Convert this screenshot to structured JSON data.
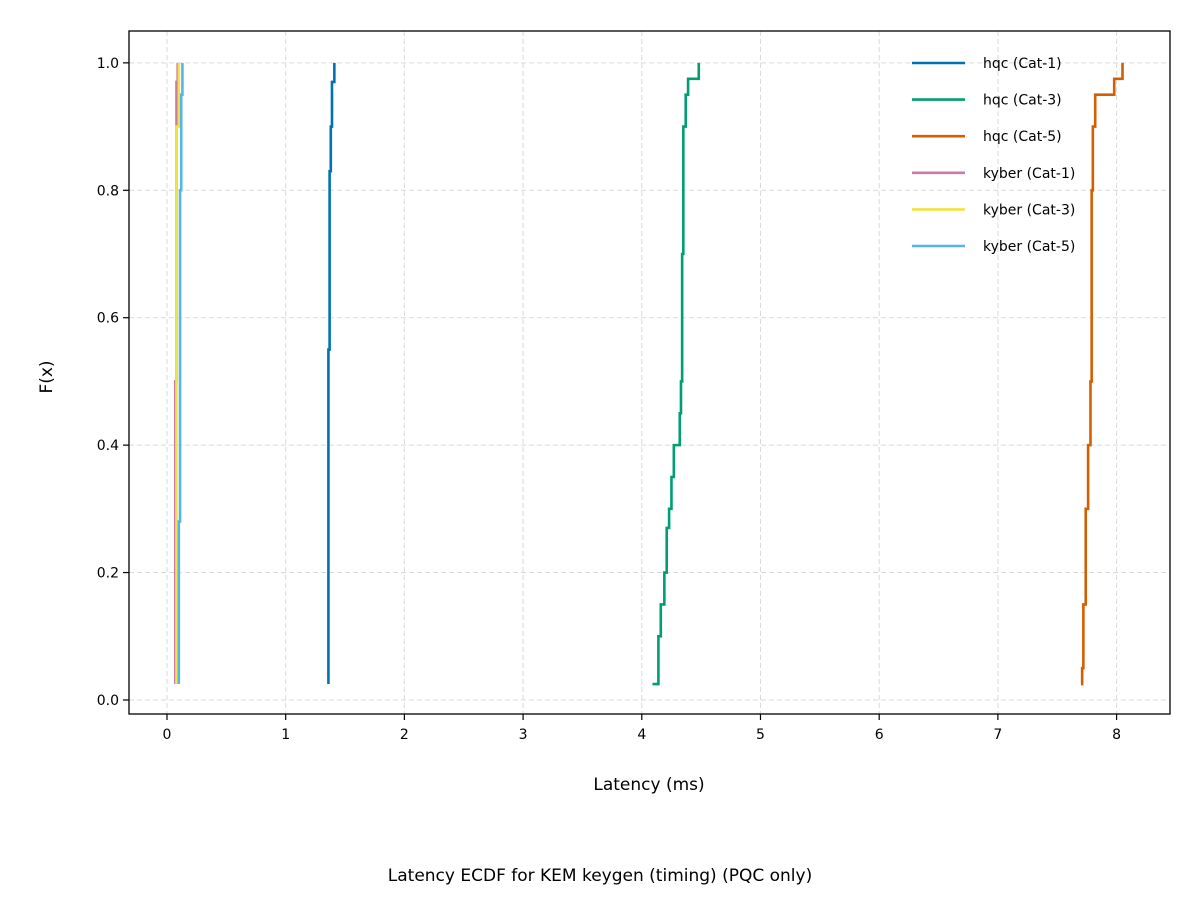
{
  "caption": "Latency ECDF for KEM keygen (timing) (PQC only)",
  "chart_data": {
    "type": "line",
    "step": true,
    "xlabel": "Latency (ms)",
    "ylabel": "F(x)",
    "xlim": [
      -0.32,
      8.45
    ],
    "ylim": [
      -0.022,
      1.05
    ],
    "xticks": [
      0,
      1,
      2,
      3,
      4,
      5,
      6,
      7,
      8
    ],
    "yticks": [
      0.0,
      0.2,
      0.4,
      0.6,
      0.8,
      1.0
    ],
    "ytick_labels": [
      "0.0",
      "0.2",
      "0.4",
      "0.6",
      "0.8",
      "1.0"
    ],
    "grid": true,
    "legend_position": "top-right",
    "series": [
      {
        "name": "hqc (Cat-1)",
        "color": "#0072B2",
        "points": [
          [
            1.36,
            0.025
          ],
          [
            1.36,
            0.55
          ],
          [
            1.37,
            0.55
          ],
          [
            1.37,
            0.83
          ],
          [
            1.38,
            0.83
          ],
          [
            1.38,
            0.9
          ],
          [
            1.39,
            0.9
          ],
          [
            1.39,
            0.97
          ],
          [
            1.41,
            0.97
          ],
          [
            1.41,
            1.0
          ]
        ]
      },
      {
        "name": "hqc (Cat-3)",
        "color": "#009E73",
        "points": [
          [
            4.09,
            0.025
          ],
          [
            4.14,
            0.025
          ],
          [
            4.14,
            0.1
          ],
          [
            4.16,
            0.1
          ],
          [
            4.16,
            0.15
          ],
          [
            4.19,
            0.15
          ],
          [
            4.19,
            0.2
          ],
          [
            4.21,
            0.2
          ],
          [
            4.21,
            0.27
          ],
          [
            4.23,
            0.27
          ],
          [
            4.23,
            0.3
          ],
          [
            4.25,
            0.3
          ],
          [
            4.25,
            0.35
          ],
          [
            4.27,
            0.35
          ],
          [
            4.27,
            0.4
          ],
          [
            4.32,
            0.4
          ],
          [
            4.32,
            0.45
          ],
          [
            4.33,
            0.45
          ],
          [
            4.33,
            0.5
          ],
          [
            4.34,
            0.5
          ],
          [
            4.34,
            0.7
          ],
          [
            4.35,
            0.7
          ],
          [
            4.35,
            0.9
          ],
          [
            4.37,
            0.9
          ],
          [
            4.37,
            0.95
          ],
          [
            4.39,
            0.95
          ],
          [
            4.39,
            0.975
          ],
          [
            4.48,
            0.975
          ],
          [
            4.48,
            1.0
          ]
        ]
      },
      {
        "name": "hqc (Cat-5)",
        "color": "#D55E00",
        "points": [
          [
            7.7,
            0.025
          ],
          [
            7.71,
            0.025
          ],
          [
            7.71,
            0.05
          ],
          [
            7.72,
            0.05
          ],
          [
            7.72,
            0.15
          ],
          [
            7.74,
            0.15
          ],
          [
            7.74,
            0.3
          ],
          [
            7.76,
            0.3
          ],
          [
            7.76,
            0.4
          ],
          [
            7.78,
            0.4
          ],
          [
            7.78,
            0.5
          ],
          [
            7.79,
            0.5
          ],
          [
            7.79,
            0.8
          ],
          [
            7.8,
            0.8
          ],
          [
            7.8,
            0.9
          ],
          [
            7.82,
            0.9
          ],
          [
            7.82,
            0.95
          ],
          [
            7.98,
            0.95
          ],
          [
            7.98,
            0.975
          ],
          [
            8.05,
            0.975
          ],
          [
            8.05,
            1.0
          ]
        ]
      },
      {
        "name": "kyber (Cat-1)",
        "color": "#CC79A7",
        "points": [
          [
            0.07,
            0.025
          ],
          [
            0.07,
            0.5
          ],
          [
            0.08,
            0.5
          ],
          [
            0.08,
            0.97
          ],
          [
            0.09,
            0.97
          ],
          [
            0.09,
            1.0
          ]
        ]
      },
      {
        "name": "kyber (Cat-3)",
        "color": "#F0E442",
        "points": [
          [
            0.08,
            0.025
          ],
          [
            0.08,
            0.9
          ],
          [
            0.1,
            0.9
          ],
          [
            0.1,
            1.0
          ]
        ]
      },
      {
        "name": "kyber (Cat-5)",
        "color": "#56B4E9",
        "points": [
          [
            0.1,
            0.025
          ],
          [
            0.1,
            0.28
          ],
          [
            0.11,
            0.28
          ],
          [
            0.11,
            0.8
          ],
          [
            0.12,
            0.8
          ],
          [
            0.12,
            0.95
          ],
          [
            0.13,
            0.95
          ],
          [
            0.13,
            1.0
          ]
        ]
      }
    ]
  }
}
